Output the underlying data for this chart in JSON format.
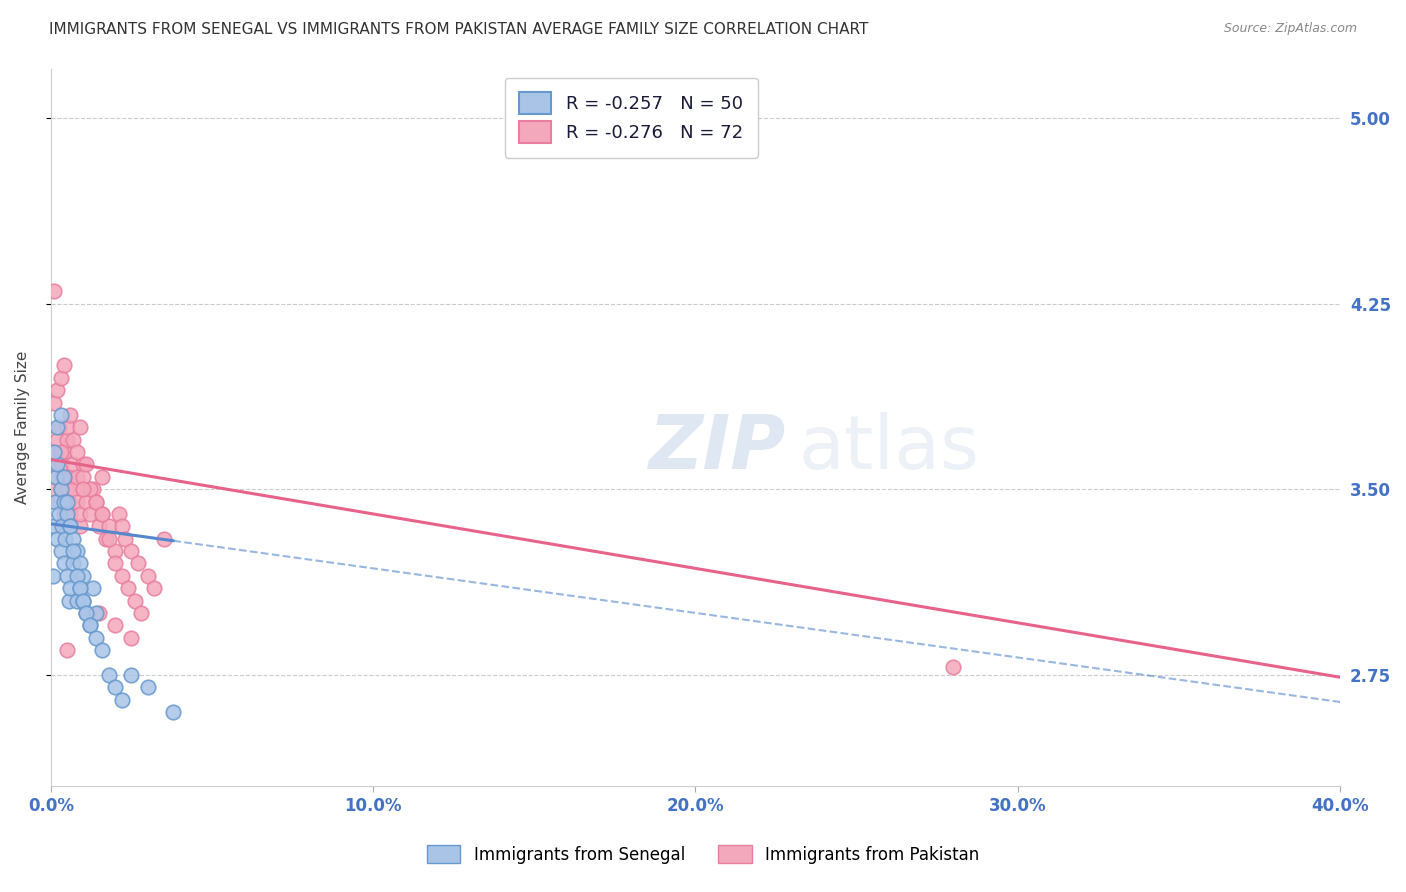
{
  "title": "IMMIGRANTS FROM SENEGAL VS IMMIGRANTS FROM PAKISTAN AVERAGE FAMILY SIZE CORRELATION CHART",
  "source": "Source: ZipAtlas.com",
  "ylabel": "Average Family Size",
  "xlim": [
    0.0,
    0.4
  ],
  "ylim": [
    2.3,
    5.2
  ],
  "yticks": [
    2.75,
    3.5,
    4.25,
    5.0
  ],
  "xticks": [
    0.0,
    0.1,
    0.2,
    0.3,
    0.4
  ],
  "xticklabels": [
    "0.0%",
    "10.0%",
    "20.0%",
    "30.0%",
    "40.0%"
  ],
  "yticklabels_right": [
    "2.75",
    "3.50",
    "4.25",
    "5.00"
  ],
  "legend_entries": [
    {
      "color": "#aac4e8",
      "R": "-0.257",
      "N": "50"
    },
    {
      "color": "#f4a8bb",
      "R": "-0.276",
      "N": "72"
    }
  ],
  "senegal_color": "#aac4e8",
  "pakistan_color": "#f4a8bb",
  "senegal_edge": "#6699cc",
  "pakistan_edge": "#e87fa0",
  "regression_senegal_color": "#5588cc",
  "regression_pakistan_color": "#e8638a",
  "background_color": "#ffffff",
  "grid_color": "#cccccc",
  "watermark_color": "#d0dce8",
  "title_fontsize": 11,
  "axis_label_fontsize": 11,
  "tick_fontsize": 11,
  "legend_fontsize": 13,
  "senegal_x": [
    0.0008,
    0.001,
    0.0012,
    0.0015,
    0.002,
    0.002,
    0.0025,
    0.003,
    0.003,
    0.0035,
    0.004,
    0.004,
    0.0045,
    0.005,
    0.005,
    0.0055,
    0.006,
    0.006,
    0.007,
    0.007,
    0.008,
    0.008,
    0.009,
    0.009,
    0.01,
    0.01,
    0.011,
    0.012,
    0.013,
    0.014,
    0.001,
    0.002,
    0.003,
    0.004,
    0.005,
    0.006,
    0.007,
    0.008,
    0.009,
    0.01,
    0.011,
    0.012,
    0.014,
    0.016,
    0.018,
    0.02,
    0.022,
    0.025,
    0.03,
    0.038
  ],
  "senegal_y": [
    3.15,
    3.35,
    3.45,
    3.55,
    3.3,
    3.6,
    3.4,
    3.25,
    3.5,
    3.35,
    3.2,
    3.45,
    3.3,
    3.15,
    3.4,
    3.05,
    3.1,
    3.35,
    3.2,
    3.3,
    3.05,
    3.25,
    3.1,
    3.2,
    3.05,
    3.15,
    3.0,
    2.95,
    3.1,
    3.0,
    3.65,
    3.75,
    3.8,
    3.55,
    3.45,
    3.35,
    3.25,
    3.15,
    3.1,
    3.05,
    3.0,
    2.95,
    2.9,
    2.85,
    2.75,
    2.7,
    2.65,
    2.75,
    2.7,
    2.6
  ],
  "pakistan_x": [
    0.0008,
    0.001,
    0.0012,
    0.0015,
    0.002,
    0.002,
    0.0025,
    0.003,
    0.003,
    0.0035,
    0.004,
    0.004,
    0.0045,
    0.005,
    0.005,
    0.0055,
    0.006,
    0.006,
    0.007,
    0.007,
    0.008,
    0.008,
    0.009,
    0.009,
    0.01,
    0.01,
    0.011,
    0.012,
    0.013,
    0.014,
    0.015,
    0.016,
    0.016,
    0.017,
    0.018,
    0.02,
    0.021,
    0.022,
    0.023,
    0.025,
    0.027,
    0.03,
    0.032,
    0.001,
    0.002,
    0.003,
    0.004,
    0.005,
    0.006,
    0.007,
    0.008,
    0.009,
    0.01,
    0.011,
    0.012,
    0.014,
    0.016,
    0.018,
    0.02,
    0.022,
    0.024,
    0.026,
    0.028,
    0.015,
    0.02,
    0.025,
    0.001,
    0.003,
    0.28,
    0.035,
    0.005,
    0.01
  ],
  "pakistan_y": [
    3.5,
    3.6,
    3.65,
    3.55,
    3.7,
    3.45,
    3.75,
    3.6,
    3.5,
    3.55,
    3.65,
    3.4,
    3.35,
    3.5,
    3.7,
    3.45,
    3.55,
    3.4,
    3.6,
    3.5,
    3.45,
    3.55,
    3.35,
    3.4,
    3.5,
    3.6,
    3.45,
    3.4,
    3.5,
    3.45,
    3.35,
    3.4,
    3.55,
    3.3,
    3.35,
    3.25,
    3.4,
    3.35,
    3.3,
    3.25,
    3.2,
    3.15,
    3.1,
    3.85,
    3.9,
    3.95,
    4.0,
    3.75,
    3.8,
    3.7,
    3.65,
    3.75,
    3.55,
    3.6,
    3.5,
    3.45,
    3.4,
    3.3,
    3.2,
    3.15,
    3.1,
    3.05,
    3.0,
    3.0,
    2.95,
    2.9,
    4.3,
    3.65,
    2.78,
    3.3,
    2.85,
    3.5
  ]
}
